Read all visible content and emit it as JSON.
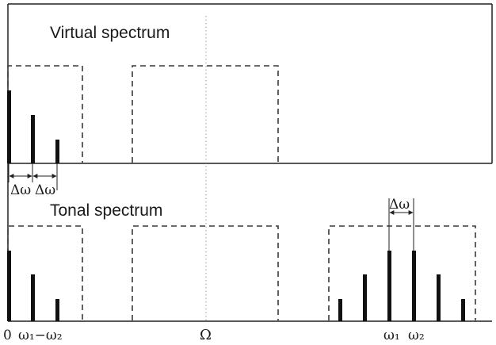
{
  "virtual_title": "Virtual spectrum",
  "tonal_title": "Tonal spectrum",
  "delta_omega": "Δω",
  "x_labels": {
    "zero": "0",
    "omega1_minus_omega2": "ω₁−ω₂",
    "Omega": "Ω",
    "omega1": "ω₁",
    "omega2": "ω₂"
  }
}
